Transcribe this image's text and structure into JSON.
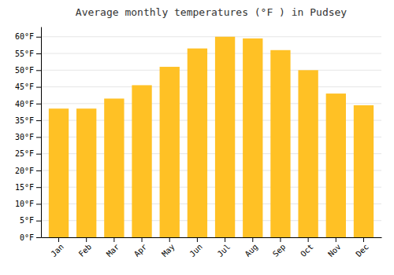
{
  "chart_data": {
    "type": "bar",
    "title": "Average monthly temperatures (°F ) in Pudsey",
    "categories": [
      "Jan",
      "Feb",
      "Mar",
      "Apr",
      "May",
      "Jun",
      "Jul",
      "Aug",
      "Sep",
      "Oct",
      "Nov",
      "Dec"
    ],
    "values": [
      38.5,
      38.5,
      41.5,
      45.5,
      51.0,
      56.5,
      60.0,
      59.5,
      56.0,
      50.0,
      43.0,
      39.5
    ],
    "color": "#FFC125",
    "ylim": [
      0,
      63
    ],
    "yticks": [
      {
        "value": 0,
        "label": "0°F"
      },
      {
        "value": 5,
        "label": "5°F"
      },
      {
        "value": 10,
        "label": "10°F"
      },
      {
        "value": 15,
        "label": "15°F"
      },
      {
        "value": 20,
        "label": "20°F"
      },
      {
        "value": 25,
        "label": "25°F"
      },
      {
        "value": 30,
        "label": "30°F"
      },
      {
        "value": 35,
        "label": "35°F"
      },
      {
        "value": 40,
        "label": "40°F"
      },
      {
        "value": 45,
        "label": "45°F"
      },
      {
        "value": 50,
        "label": "50°F"
      },
      {
        "value": 55,
        "label": "55°F"
      },
      {
        "value": 60,
        "label": "60°F"
      }
    ],
    "grid": true
  }
}
